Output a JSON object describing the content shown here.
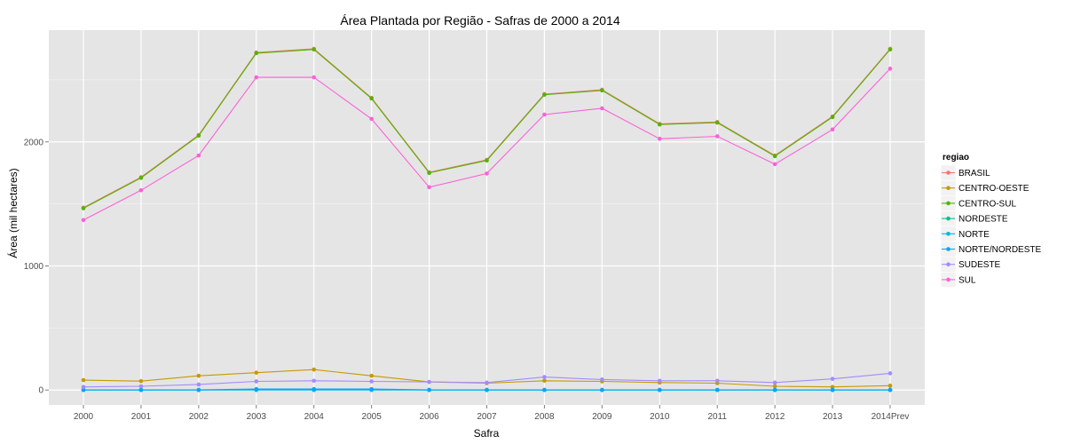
{
  "chart_data": {
    "type": "line",
    "title": "Área Plantada por Região - Safras de 2000 a 2014",
    "xlabel": "Safra",
    "ylabel": "Área (mil hectares)",
    "categories": [
      "2000",
      "2001",
      "2002",
      "2003",
      "2004",
      "2005",
      "2006",
      "2007",
      "2008",
      "2009",
      "2010",
      "2011",
      "2012",
      "2013",
      "2014Prev"
    ],
    "ylim": [
      -120,
      2900
    ],
    "yticks": [
      0,
      1000,
      2000
    ],
    "grid": true,
    "legend": {
      "title": "regiao",
      "position": "right"
    },
    "series": [
      {
        "name": "BRASIL",
        "color": "#F8766D",
        "values": [
          1470,
          1715,
          2055,
          2720,
          2750,
          2355,
          1755,
          1855,
          2385,
          2420,
          2145,
          2160,
          1890,
          2205,
          2750
        ]
      },
      {
        "name": "CENTRO-OESTE",
        "color": "#C49A00",
        "values": [
          80,
          72,
          115,
          140,
          165,
          115,
          65,
          55,
          75,
          70,
          60,
          55,
          30,
          25,
          35
        ]
      },
      {
        "name": "CENTRO-SUL",
        "color": "#53B400",
        "values": [
          1465,
          1710,
          2050,
          2715,
          2745,
          2350,
          1750,
          1850,
          2380,
          2415,
          2140,
          2155,
          1885,
          2200,
          2745
        ]
      },
      {
        "name": "NORDESTE",
        "color": "#00C094",
        "values": [
          0,
          0,
          0,
          5,
          5,
          5,
          0,
          0,
          0,
          0,
          0,
          0,
          0,
          0,
          0
        ]
      },
      {
        "name": "NORTE",
        "color": "#00B6EB",
        "values": [
          0,
          0,
          0,
          0,
          0,
          0,
          0,
          0,
          0,
          0,
          0,
          0,
          0,
          0,
          0
        ]
      },
      {
        "name": "NORTE/NORDESTE",
        "color": "#06A4FF",
        "values": [
          2,
          2,
          2,
          8,
          8,
          8,
          2,
          2,
          2,
          2,
          2,
          2,
          2,
          2,
          2
        ]
      },
      {
        "name": "SUDESTE",
        "color": "#A58AFF",
        "values": [
          25,
          30,
          45,
          70,
          75,
          70,
          65,
          60,
          105,
          85,
          75,
          75,
          60,
          90,
          135
        ]
      },
      {
        "name": "SUL",
        "color": "#FB61D7",
        "values": [
          1370,
          1610,
          1890,
          2520,
          2520,
          2185,
          1635,
          1745,
          2220,
          2270,
          2025,
          2045,
          1820,
          2100,
          2590
        ]
      }
    ]
  }
}
